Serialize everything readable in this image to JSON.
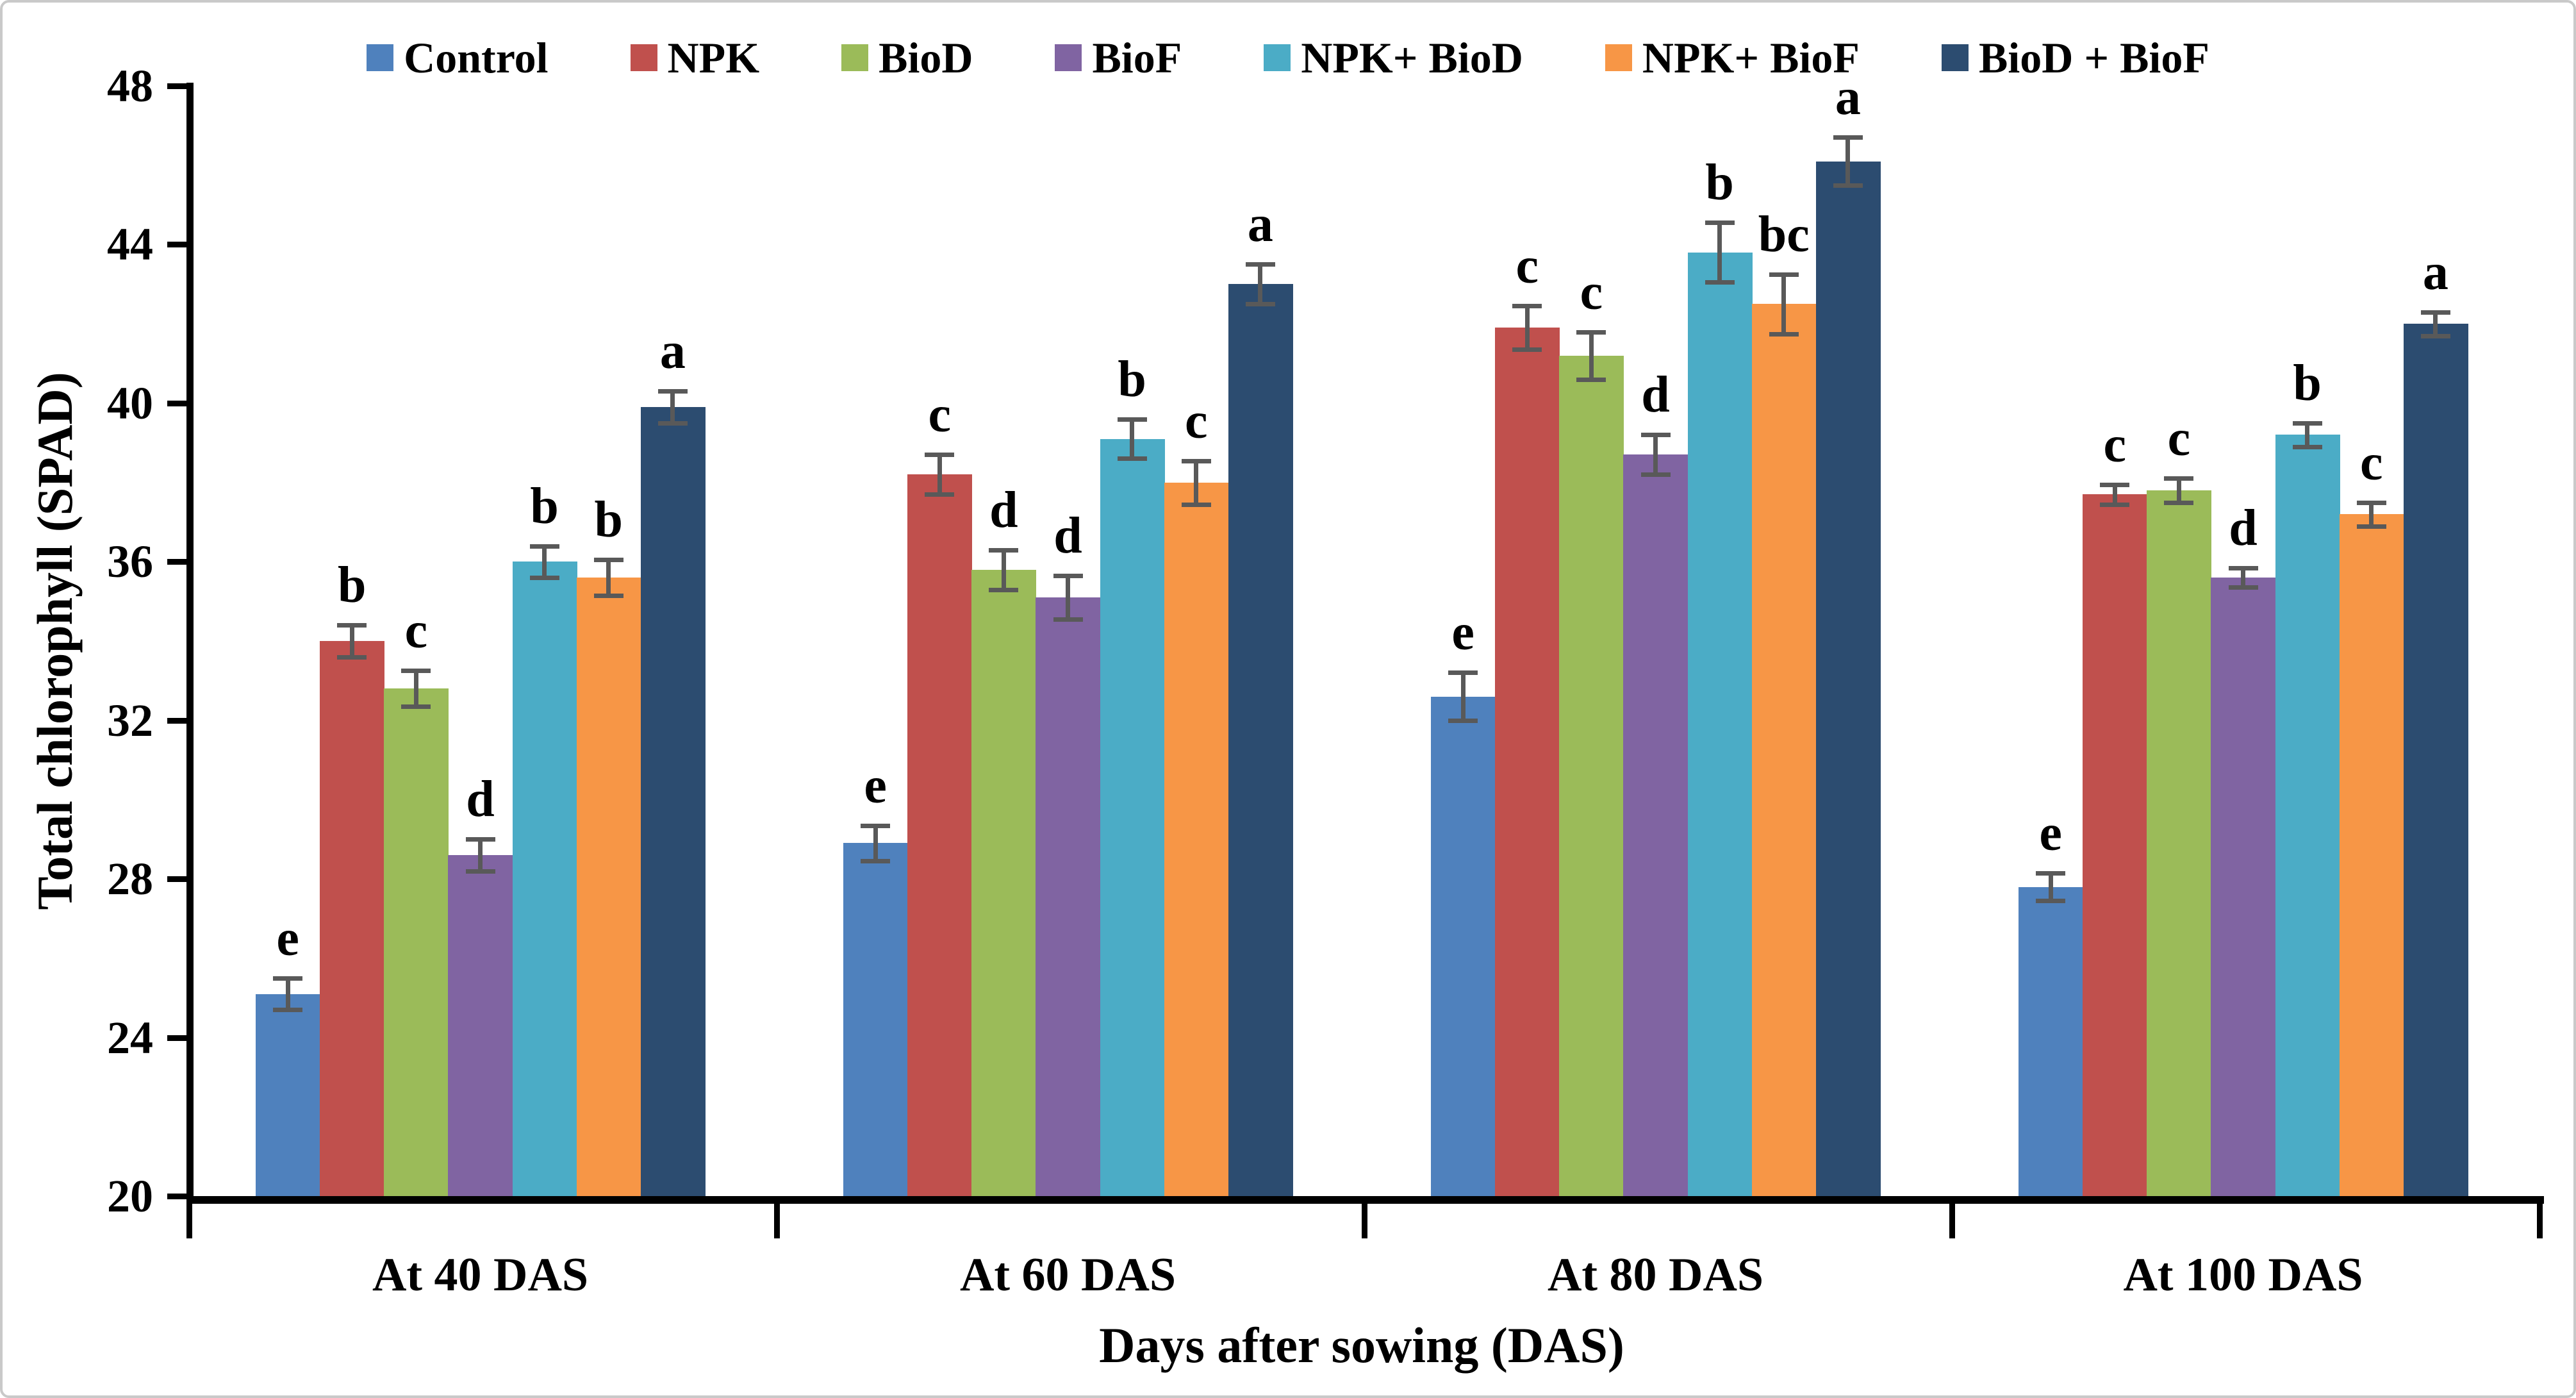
{
  "chart_data": {
    "type": "bar",
    "title": "",
    "xlabel": "Days after sowing (DAS)",
    "ylabel": "Total chlorophyll (SPAD)",
    "categories": [
      "At 40 DAS",
      "At 60 DAS",
      "At 80 DAS",
      "At 100 DAS"
    ],
    "ylim": [
      20,
      48
    ],
    "yticks": [
      20,
      24,
      28,
      32,
      36,
      40,
      44,
      48
    ],
    "grid": false,
    "legend_position": "top",
    "error_bar_color": "#595959",
    "series": [
      {
        "name": "Control",
        "color": "#4F81BD",
        "values": [
          25.1,
          28.9,
          32.6,
          27.8
        ],
        "errors": [
          0.4,
          0.45,
          0.6,
          0.35
        ],
        "letters": [
          "e",
          "e",
          "e",
          "e"
        ]
      },
      {
        "name": "NPK",
        "color": "#C0504D",
        "values": [
          34.0,
          38.2,
          41.9,
          37.7
        ],
        "errors": [
          0.4,
          0.5,
          0.55,
          0.25
        ],
        "letters": [
          "b",
          "c",
          "c",
          "c"
        ]
      },
      {
        "name": "BioD",
        "color": "#9BBB59",
        "values": [
          32.8,
          35.8,
          41.2,
          37.8
        ],
        "errors": [
          0.45,
          0.5,
          0.6,
          0.3
        ],
        "letters": [
          "c",
          "d",
          "c",
          "c"
        ]
      },
      {
        "name": "BioF",
        "color": "#8064A2",
        "values": [
          28.6,
          35.1,
          38.7,
          35.6
        ],
        "errors": [
          0.4,
          0.55,
          0.5,
          0.25
        ],
        "letters": [
          "d",
          "d",
          "d",
          "d"
        ]
      },
      {
        "name": "NPK+ BioD",
        "color": "#4BACC6",
        "values": [
          36.0,
          39.1,
          43.8,
          39.2
        ],
        "errors": [
          0.4,
          0.5,
          0.75,
          0.3
        ],
        "letters": [
          "b",
          "b",
          "b",
          "b"
        ]
      },
      {
        "name": "NPK+ BioF",
        "color": "#F79646",
        "values": [
          35.6,
          38.0,
          42.5,
          37.2
        ],
        "errors": [
          0.45,
          0.55,
          0.75,
          0.3
        ],
        "letters": [
          "b",
          "c",
          "bc",
          "c"
        ]
      },
      {
        "name": "BioD + BioF",
        "color": "#2C4C70",
        "values": [
          39.9,
          43.0,
          46.1,
          42.0
        ],
        "errors": [
          0.4,
          0.5,
          0.6,
          0.3
        ],
        "letters": [
          "a",
          "a",
          "a",
          "a"
        ]
      }
    ]
  }
}
